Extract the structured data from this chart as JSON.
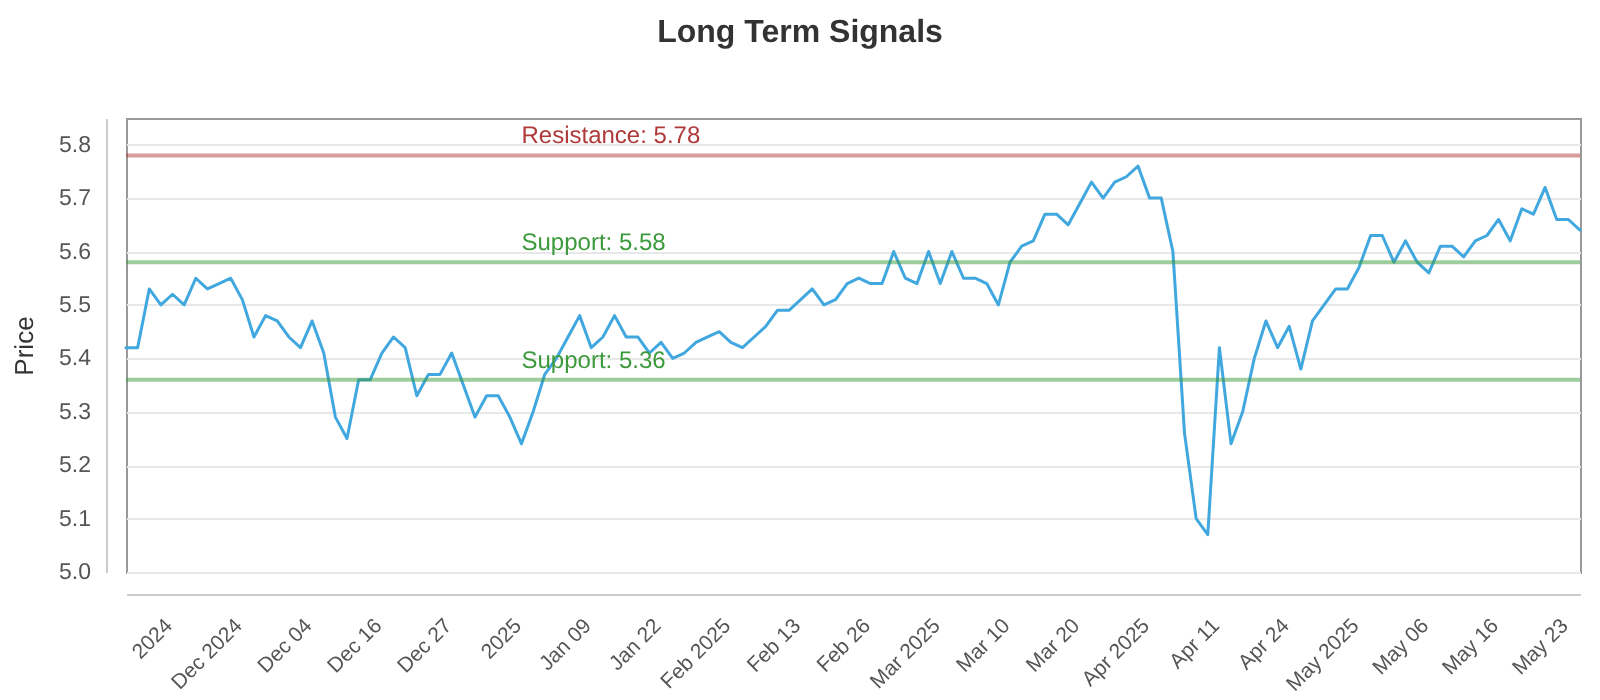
{
  "chart_data": {
    "type": "line",
    "title": "Long Term Signals",
    "ylabel": "Price",
    "categories": [
      null,
      null,
      null,
      null,
      "2024",
      null,
      null,
      null,
      null,
      null,
      "Dec 2024",
      null,
      null,
      null,
      null,
      null,
      "Dec 04",
      null,
      null,
      null,
      null,
      null,
      "Dec 16",
      null,
      null,
      null,
      null,
      null,
      "Dec 27",
      null,
      null,
      null,
      null,
      null,
      "2025",
      null,
      null,
      null,
      null,
      null,
      "Jan 09",
      null,
      null,
      null,
      null,
      null,
      "Jan 22",
      null,
      null,
      null,
      null,
      null,
      "Feb 2025",
      null,
      null,
      null,
      null,
      null,
      "Feb 13",
      null,
      null,
      null,
      null,
      null,
      "Feb 26",
      null,
      null,
      null,
      null,
      null,
      "Mar 2025",
      null,
      null,
      null,
      null,
      null,
      "Mar 10",
      null,
      null,
      null,
      null,
      null,
      "Mar 20",
      null,
      null,
      null,
      null,
      null,
      "Apr 2025",
      null,
      null,
      null,
      null,
      null,
      "Apr 11",
      null,
      null,
      null,
      null,
      null,
      "Apr 24",
      null,
      null,
      null,
      null,
      null,
      "May 2025",
      null,
      null,
      null,
      null,
      null,
      "May 06",
      null,
      null,
      null,
      null,
      null,
      "May 16",
      null,
      null,
      null,
      null,
      null,
      "May 23",
      null
    ],
    "series": [
      {
        "color": "#41a7df",
        "values": [
          5.42,
          5.42,
          5.53,
          5.5,
          5.52,
          5.5,
          5.55,
          5.53,
          5.54,
          5.55,
          5.51,
          5.44,
          5.48,
          5.47,
          5.44,
          5.42,
          5.47,
          5.41,
          5.29,
          5.25,
          5.36,
          5.36,
          5.41,
          5.44,
          5.42,
          5.33,
          5.37,
          5.37,
          5.41,
          5.35,
          5.29,
          5.33,
          5.33,
          5.29,
          5.24,
          5.3,
          5.37,
          5.4,
          5.44,
          5.48,
          5.42,
          5.44,
          5.48,
          5.44,
          5.44,
          5.41,
          5.43,
          5.4,
          5.41,
          5.43,
          5.44,
          5.45,
          5.43,
          5.42,
          5.44,
          5.46,
          5.49,
          5.49,
          5.51,
          5.53,
          5.5,
          5.51,
          5.54,
          5.55,
          5.54,
          5.54,
          5.6,
          5.55,
          5.54,
          5.6,
          5.54,
          5.6,
          5.55,
          5.55,
          5.54,
          5.5,
          5.58,
          5.61,
          5.62,
          5.67,
          5.67,
          5.65,
          5.69,
          5.73,
          5.7,
          5.73,
          5.74,
          5.76,
          5.7,
          5.7,
          5.6,
          5.26,
          5.1,
          5.07,
          5.42,
          5.24,
          5.3,
          5.4,
          5.47,
          5.42,
          5.46,
          5.38,
          5.47,
          5.5,
          5.53,
          5.53,
          5.57,
          5.63,
          5.63,
          5.58,
          5.62,
          5.58,
          5.56,
          5.61,
          5.61,
          5.59,
          5.62,
          5.63,
          5.66,
          5.62,
          5.68,
          5.67,
          5.72,
          5.66,
          5.66,
          5.64
        ]
      }
    ],
    "ylim": [
      5.0,
      5.85
    ],
    "yticks": [
      {
        "value": 5.0,
        "label": "5.0"
      },
      5.1,
      5.2,
      5.3,
      5.4,
      5.5,
      5.6,
      5.7,
      5.8
    ],
    "ref_lines": [
      {
        "axis": "y",
        "value": 5.78,
        "label": "Resistance: 5.78",
        "color": "#b03a3a"
      },
      {
        "axis": "y",
        "value": 5.58,
        "label": "Support: 5.58",
        "color": "#3c9a3c"
      },
      {
        "axis": "y",
        "value": 5.36,
        "label": "Support: 5.36",
        "color": "#3c9a3c"
      }
    ],
    "grid": "y"
  }
}
